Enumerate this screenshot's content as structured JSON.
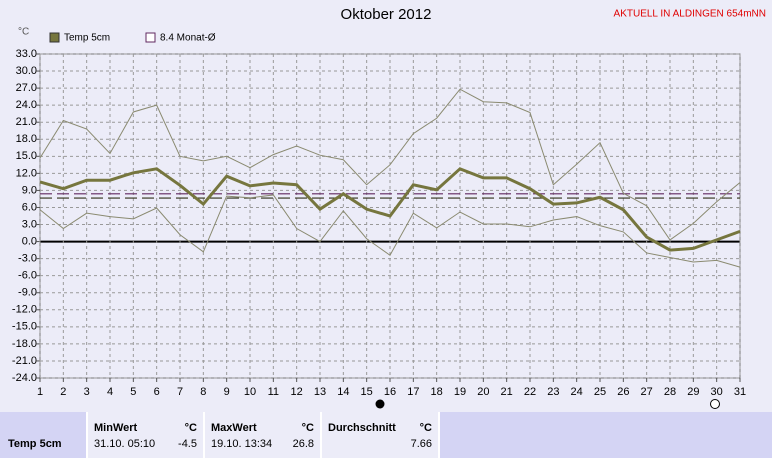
{
  "chart_data": {
    "type": "line",
    "title": "Oktober 2012",
    "subtitle": "AKTUELL IN ALDINGEN 654mNN",
    "y_label": "°C",
    "x": [
      1,
      2,
      3,
      4,
      5,
      6,
      7,
      8,
      9,
      10,
      11,
      12,
      13,
      14,
      15,
      16,
      17,
      18,
      19,
      20,
      21,
      22,
      23,
      24,
      25,
      26,
      27,
      28,
      29,
      30,
      31
    ],
    "series": [
      {
        "name": "Temp 5cm",
        "color": "#76763e",
        "width": 3,
        "values": [
          10.5,
          9.3,
          10.8,
          10.8,
          12.1,
          12.8,
          9.9,
          6.6,
          11.5,
          9.8,
          10.3,
          10.0,
          5.7,
          8.4,
          5.7,
          4.5,
          10.0,
          9.1,
          12.8,
          11.2,
          11.2,
          9.3,
          6.6,
          6.8,
          7.8,
          5.6,
          0.8,
          -1.5,
          -1.2,
          0.3,
          1.8
        ]
      },
      {
        "color": "#8a8a70",
        "width": 1,
        "values": [
          14.7,
          21.3,
          19.8,
          15.5,
          22.8,
          24.0,
          15.0,
          14.2,
          15.0,
          13.0,
          15.3,
          16.8,
          15.2,
          14.4,
          10.0,
          13.5,
          19.0,
          21.7,
          26.8,
          24.6,
          24.4,
          22.7,
          10.0,
          13.6,
          17.4,
          8.5,
          6.3,
          0.3,
          3.2,
          7.0,
          10.4
        ]
      },
      {
        "color": "#8a8a70",
        "width": 1,
        "values": [
          5.6,
          2.3,
          5.0,
          4.4,
          4.0,
          5.9,
          1.2,
          -1.8,
          8.0,
          7.7,
          8.2,
          2.3,
          0.0,
          5.4,
          0.5,
          -2.4,
          5.0,
          2.4,
          5.2,
          3.1,
          3.1,
          2.6,
          3.8,
          4.4,
          2.8,
          1.7,
          -2.0,
          -2.8,
          -3.6,
          -3.3,
          -4.5
        ]
      }
    ],
    "reference": {
      "name": "8.4 Monat-Ø",
      "value": 8.4,
      "color": "#602860"
    },
    "xlim": [
      1,
      31
    ],
    "xticks": [
      1,
      2,
      3,
      4,
      5,
      6,
      7,
      8,
      9,
      10,
      11,
      12,
      13,
      14,
      15,
      16,
      17,
      18,
      19,
      20,
      21,
      22,
      23,
      24,
      25,
      26,
      27,
      28,
      29,
      30,
      31
    ],
    "ylim": [
      -24,
      33
    ],
    "yticks": [
      {
        "value": -24,
        "label": "-24.0"
      },
      {
        "value": -21,
        "label": "-21.0"
      },
      {
        "value": -18,
        "label": "-18.0"
      },
      {
        "value": -15,
        "label": "-15.0"
      },
      {
        "value": -12,
        "label": "-12.0"
      },
      {
        "value": -9,
        "label": "-9.0"
      },
      {
        "value": -6,
        "label": "-6.0"
      },
      {
        "value": -3,
        "label": "-3.0"
      },
      {
        "value": 0,
        "label": "0.0"
      },
      {
        "value": 3,
        "label": "3.0"
      },
      {
        "value": 6,
        "label": "6.0"
      },
      {
        "value": 9,
        "label": "9.0"
      },
      {
        "value": 12,
        "label": "12.0"
      },
      {
        "value": 15,
        "label": "15.0"
      },
      {
        "value": 18,
        "label": "18.0"
      },
      {
        "value": 21,
        "label": "21.0"
      },
      {
        "value": 24,
        "label": "24.0"
      },
      {
        "value": 27,
        "label": "27.0"
      },
      {
        "value": 30,
        "label": "30.0"
      },
      {
        "value": 33,
        "label": "33.0"
      }
    ],
    "grid": true
  },
  "table": {
    "row_label": "Temp 5cm",
    "min_title": "MinWert",
    "max_title": "MaxWert",
    "avg_title": "Durchschnitt",
    "unit": "°C",
    "min_time": "31.10. 05:10",
    "min_value": -4.5,
    "max_time": "19.10. 13:34",
    "max_value": 26.8,
    "avg_value": 7.66,
    "avg_color": "#303018"
  }
}
